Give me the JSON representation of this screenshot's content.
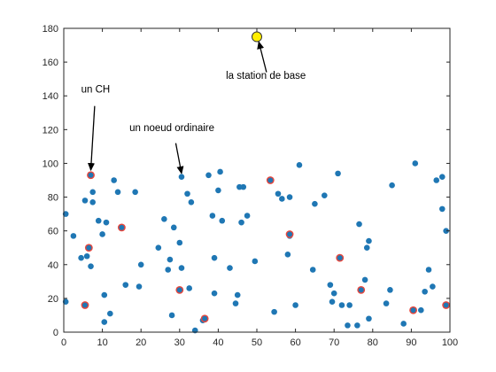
{
  "chart_data": {
    "type": "scatter",
    "title": "",
    "xlabel": "",
    "ylabel": "",
    "xlim": [
      0,
      100
    ],
    "ylim": [
      0,
      180
    ],
    "xticks": [
      "0",
      "10",
      "20",
      "30",
      "40",
      "50",
      "60",
      "70",
      "80",
      "90",
      "100"
    ],
    "yticks": [
      "0",
      "20",
      "40",
      "60",
      "80",
      "100",
      "120",
      "140",
      "160",
      "180"
    ],
    "grid": false,
    "colors": {
      "node": "#1f77b4",
      "ch_ring": "#e8463c",
      "base_station_fill": "#ffee00",
      "base_station_edge": "#333333"
    },
    "series": [
      {
        "points": [
          [
            0.5,
            70
          ],
          [
            0.5,
            18
          ],
          [
            2.5,
            57
          ],
          [
            4.5,
            44
          ],
          [
            5.5,
            78
          ],
          [
            6,
            45
          ],
          [
            7,
            39
          ],
          [
            7.5,
            77
          ],
          [
            7.5,
            83
          ],
          [
            9,
            66
          ],
          [
            10,
            58
          ],
          [
            10.5,
            6
          ],
          [
            10.5,
            22
          ],
          [
            11,
            65
          ],
          [
            12,
            11
          ],
          [
            13,
            90
          ],
          [
            14,
            83
          ],
          [
            15,
            62
          ],
          [
            16,
            28
          ],
          [
            18.5,
            83
          ],
          [
            19.5,
            27
          ],
          [
            20,
            40
          ],
          [
            24.5,
            50
          ],
          [
            26,
            67
          ],
          [
            27,
            37
          ],
          [
            27.5,
            43
          ],
          [
            28,
            10
          ],
          [
            28.5,
            62
          ],
          [
            30,
            53
          ],
          [
            30.5,
            38
          ],
          [
            30.5,
            92
          ],
          [
            32,
            82
          ],
          [
            32.5,
            26
          ],
          [
            33,
            77
          ],
          [
            34,
            1
          ],
          [
            36,
            7
          ],
          [
            37.5,
            93
          ],
          [
            38.5,
            69
          ],
          [
            39,
            44
          ],
          [
            39,
            23
          ],
          [
            40,
            84
          ],
          [
            40.5,
            95
          ],
          [
            41,
            66
          ],
          [
            43,
            38
          ],
          [
            44.5,
            17
          ],
          [
            45,
            22
          ],
          [
            45.5,
            86
          ],
          [
            46,
            65
          ],
          [
            46.5,
            86
          ],
          [
            47.5,
            69
          ],
          [
            49.5,
            42
          ],
          [
            54.5,
            12
          ],
          [
            55.5,
            82
          ],
          [
            56.5,
            79
          ],
          [
            58,
            46
          ],
          [
            58.5,
            80
          ],
          [
            58.5,
            57
          ],
          [
            60,
            16
          ],
          [
            61,
            99
          ],
          [
            64.5,
            37
          ],
          [
            65,
            76
          ],
          [
            67.5,
            81
          ],
          [
            69,
            28
          ],
          [
            69.5,
            18
          ],
          [
            70,
            23
          ],
          [
            71,
            94
          ],
          [
            72,
            16
          ],
          [
            73.5,
            4
          ],
          [
            74,
            16
          ],
          [
            76,
            4
          ],
          [
            76.5,
            64
          ],
          [
            78,
            31
          ],
          [
            78.5,
            50
          ],
          [
            79,
            54
          ],
          [
            79,
            8
          ],
          [
            83.5,
            17
          ],
          [
            84.5,
            25
          ],
          [
            85,
            87
          ],
          [
            88,
            5
          ],
          [
            91,
            100
          ],
          [
            92.5,
            13
          ],
          [
            93.5,
            24
          ],
          [
            94.5,
            37
          ],
          [
            95.5,
            27
          ],
          [
            96.5,
            90
          ],
          [
            98,
            92
          ],
          [
            98,
            73
          ],
          [
            99,
            60
          ]
        ]
      },
      {
        "points": [
          [
            5.5,
            16
          ],
          [
            6.5,
            50
          ],
          [
            7,
            93
          ],
          [
            15,
            62
          ],
          [
            30,
            25
          ],
          [
            36.5,
            8
          ],
          [
            53.5,
            90
          ],
          [
            58.5,
            58
          ],
          [
            71.5,
            44
          ],
          [
            77,
            25
          ],
          [
            90.5,
            13
          ],
          [
            99,
            16
          ]
        ]
      },
      {
        "points": [
          [
            50,
            175
          ]
        ]
      }
    ],
    "annotations": [
      {
        "text": "un CH",
        "text_at": [
          4.5,
          142
        ],
        "arrow_from": [
          8,
          134
        ],
        "arrow_to": [
          7,
          96
        ]
      },
      {
        "text": "un noeud ordinaire",
        "text_at": [
          17,
          119
        ],
        "arrow_from": [
          29,
          112
        ],
        "arrow_to": [
          30.5,
          94
        ]
      },
      {
        "text": "la station de base",
        "text_at": [
          42,
          150
        ],
        "arrow_from": [
          52.5,
          154
        ],
        "arrow_to": [
          50.5,
          172
        ]
      }
    ]
  }
}
